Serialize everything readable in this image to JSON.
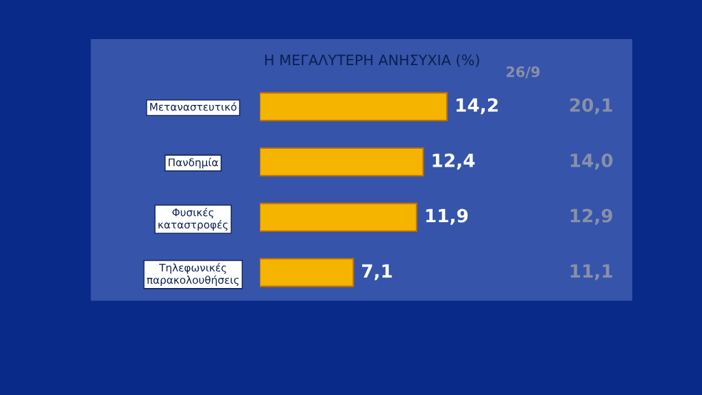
{
  "chart_data": {
    "type": "bar",
    "orientation": "horizontal",
    "title": "Η ΜΕΓΑΛΥΤΕΡΗ ΑΝΗΣΥΧΙΑ (%)",
    "categories": [
      "Μεταναστευτικό",
      "Πανδημία",
      "Φυσικές\nκαταστροφές",
      "Τηλεφωνικές\nπαρακολουθήσεις"
    ],
    "values": [
      14.2,
      12.4,
      11.9,
      7.1
    ],
    "color": "#f5b400",
    "value_labels": [
      "14,2",
      "12,4",
      "11,9",
      "7,1"
    ],
    "annotations": [
      "26/9",
      "20,1",
      "14,0",
      "12,9",
      "11,1"
    ],
    "grid": false,
    "legend": false
  }
}
